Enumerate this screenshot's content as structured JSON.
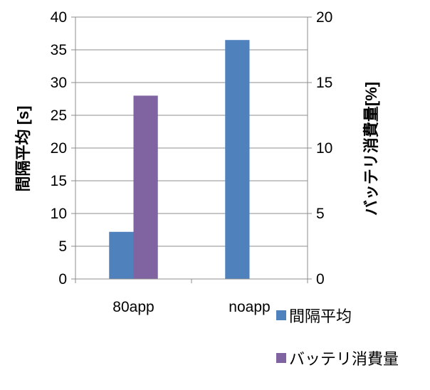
{
  "chart_data": {
    "type": "bar",
    "categories": [
      "80app",
      "noapp"
    ],
    "series": [
      {
        "name": "間隔平均",
        "axis": "left",
        "color": "#4f81bd",
        "values": [
          7.2,
          36.5
        ]
      },
      {
        "name": "バッテリ消費量",
        "axis": "right",
        "color": "#8064a2",
        "values": [
          14,
          null
        ]
      }
    ],
    "ylabel": "間隔平均 [s]",
    "y2label": "バッテリ消費量[%]",
    "ylim": [
      0,
      40
    ],
    "y2lim": [
      0,
      20
    ],
    "yticks": [
      "0",
      "5",
      "10",
      "15",
      "20",
      "25",
      "30",
      "35",
      "40"
    ],
    "y2ticks": [
      "0",
      "5",
      "10",
      "15",
      "20"
    ],
    "grid": true,
    "legend": "bottom-right"
  }
}
